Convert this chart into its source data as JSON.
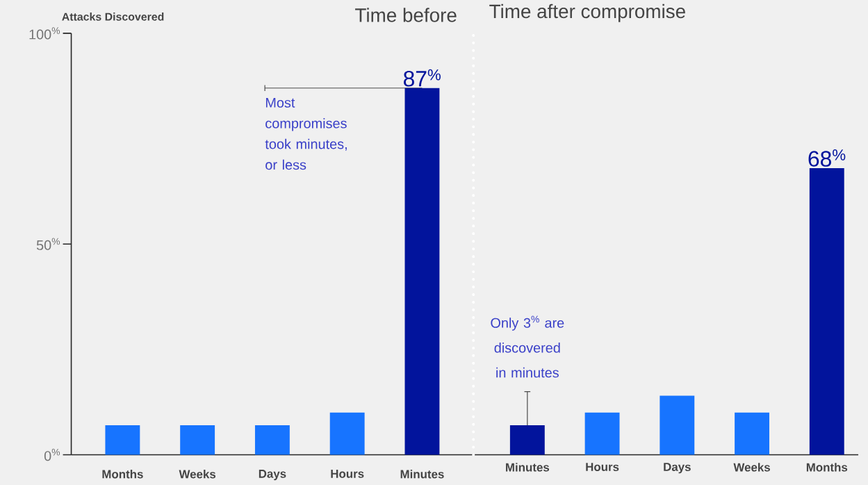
{
  "chart_data": [
    {
      "type": "bar",
      "title": "Time before",
      "ylabel": "Attacks Discovered",
      "categories": [
        "Months",
        "Weeks",
        "Days",
        "Hours",
        "Minutes"
      ],
      "values": [
        7,
        7,
        7,
        10,
        87
      ],
      "colors": [
        "#1774ff",
        "#1774ff",
        "#1774ff",
        "#1774ff",
        "#02149c"
      ],
      "value_labels": [
        null,
        null,
        null,
        null,
        "87$^{%}$"
      ],
      "ylim": [
        0,
        100
      ],
      "yticks": [
        {
          "value": 0,
          "label": "0$^{%}$"
        },
        {
          "value": 50,
          "label": "50$^{%}$"
        },
        {
          "value": 100,
          "label": "100$^{%}$"
        }
      ],
      "annotations": [
        {
          "text": "Most compromises took minutes, or less",
          "x": "Minutes",
          "y": 87
        }
      ]
    },
    {
      "type": "bar",
      "title": "Time after compromise",
      "categories": [
        "Minutes",
        "Hours",
        "Days",
        "Weeks",
        "Months"
      ],
      "values": [
        7,
        10,
        14,
        10,
        68
      ],
      "colors": [
        "#02149c",
        "#1774ff",
        "#1774ff",
        "#1774ff",
        "#02149c"
      ],
      "value_labels": [
        null,
        null,
        null,
        null,
        "68$^{%}$"
      ],
      "ylim": [
        0,
        100
      ],
      "tick_labels": "x",
      "annotations": [
        {
          "text": "Only 3$^{%}$ are discovered in minutes",
          "x": "Minutes",
          "y": 7
        }
      ]
    }
  ]
}
